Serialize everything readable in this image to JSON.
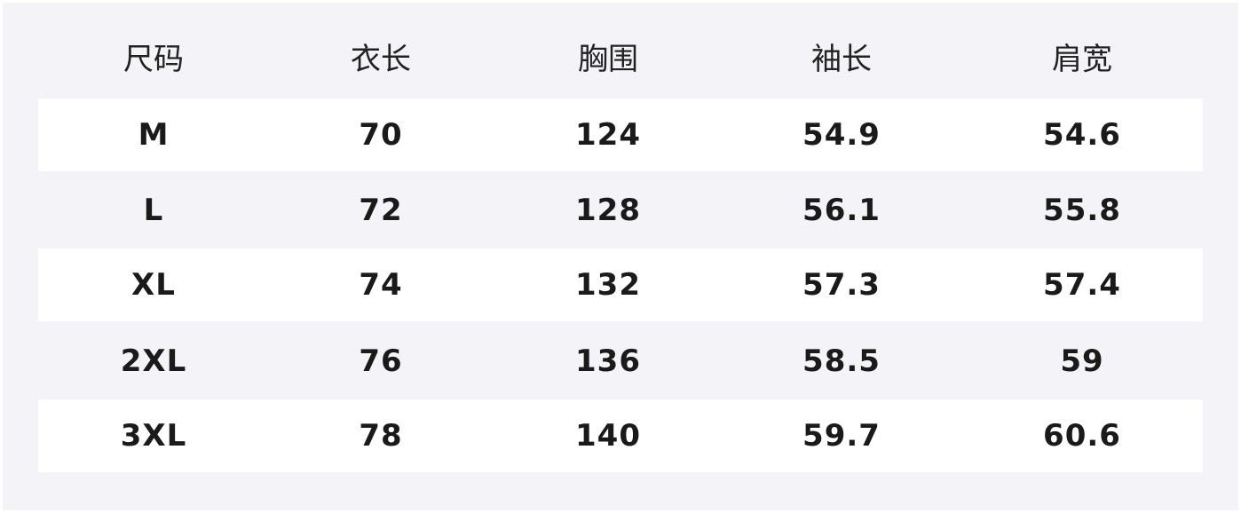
{
  "headers": [
    "尺码",
    "衣长",
    "胸围",
    "袖长",
    "肩宽"
  ],
  "rows": [
    [
      "M",
      "70",
      "124",
      "54.9",
      "54.6"
    ],
    [
      "L",
      "72",
      "128",
      "56.1",
      "55.8"
    ],
    [
      "XL",
      "74",
      "132",
      "57.3",
      "57.4"
    ],
    [
      "2XL",
      "76",
      "136",
      "58.5",
      "59"
    ],
    [
      "3XL",
      "78",
      "140",
      "59.7",
      "60.6"
    ]
  ]
}
